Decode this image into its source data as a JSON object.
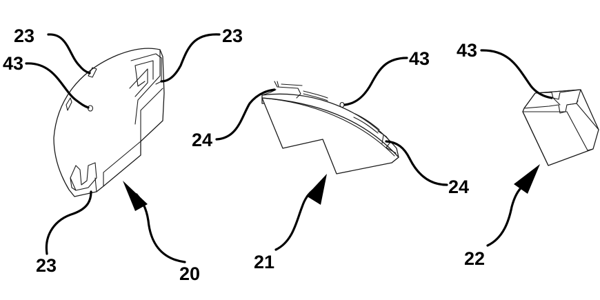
{
  "labels": {
    "part_20": "20",
    "part_21": "21",
    "part_22": "22",
    "left_top": "23",
    "left_right": "23",
    "left_bottom": "23",
    "left_hole": "43",
    "mid_hole": "43",
    "mid_left": "24",
    "mid_right": "24",
    "right_hole": "43"
  }
}
